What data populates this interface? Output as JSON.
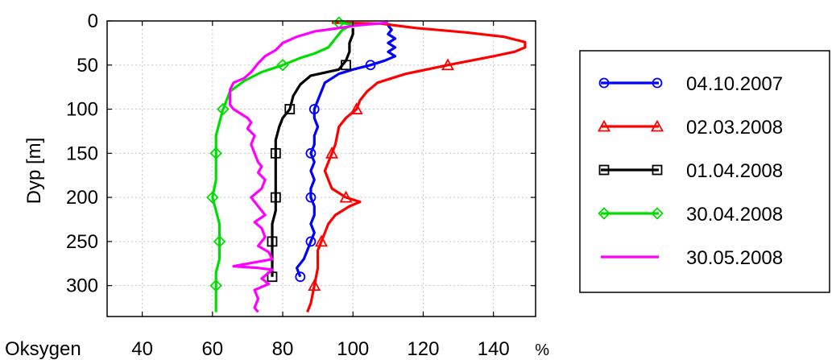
{
  "chart_data": {
    "type": "line",
    "title": "",
    "xlabel": "Oksygen",
    "xunit": "%",
    "ylabel": "Dyp [m]",
    "xlim": [
      30,
      152
    ],
    "ylim": [
      0,
      335
    ],
    "y_inverted": true,
    "xticks": [
      40,
      60,
      80,
      100,
      120,
      140
    ],
    "yticks": [
      0,
      50,
      100,
      150,
      200,
      250,
      300
    ],
    "grid": true,
    "legend_position": "right",
    "series": [
      {
        "name": "04.10.2007",
        "color": "#0000ff",
        "marker": "circle",
        "points": [
          [
            110,
            5
          ],
          [
            111,
            10
          ],
          [
            110,
            15
          ],
          [
            112,
            20
          ],
          [
            110,
            25
          ],
          [
            112,
            30
          ],
          [
            110,
            35
          ],
          [
            112,
            40
          ],
          [
            109,
            45
          ],
          [
            105,
            50
          ],
          [
            100,
            55
          ],
          [
            96,
            60
          ],
          [
            94,
            65
          ],
          [
            92,
            70
          ],
          [
            91,
            80
          ],
          [
            90,
            90
          ],
          [
            89,
            100
          ],
          [
            89,
            110
          ],
          [
            90,
            120
          ],
          [
            89,
            130
          ],
          [
            89,
            140
          ],
          [
            88,
            150
          ],
          [
            89,
            160
          ],
          [
            88,
            170
          ],
          [
            89,
            180
          ],
          [
            88,
            190
          ],
          [
            88,
            200
          ],
          [
            89,
            210
          ],
          [
            89,
            220
          ],
          [
            88,
            230
          ],
          [
            89,
            240
          ],
          [
            88,
            250
          ],
          [
            87,
            260
          ],
          [
            86,
            270
          ],
          [
            84,
            280
          ],
          [
            85,
            290
          ]
        ],
        "marker_points": [
          [
            105,
            50
          ],
          [
            89,
            100
          ],
          [
            88,
            150
          ],
          [
            88,
            200
          ],
          [
            88,
            250
          ],
          [
            85,
            290
          ]
        ]
      },
      {
        "name": "02.03.2008",
        "color": "#ff0000",
        "marker": "triangle",
        "points": [
          [
            94,
            2
          ],
          [
            108,
            3
          ],
          [
            118,
            8
          ],
          [
            132,
            13
          ],
          [
            143,
            18
          ],
          [
            149,
            24
          ],
          [
            149,
            30
          ],
          [
            146,
            35
          ],
          [
            140,
            40
          ],
          [
            127,
            50
          ],
          [
            115,
            60
          ],
          [
            107,
            70
          ],
          [
            104,
            80
          ],
          [
            102,
            90
          ],
          [
            101,
            100
          ],
          [
            98,
            110
          ],
          [
            96,
            120
          ],
          [
            95,
            140
          ],
          [
            94,
            150
          ],
          [
            93,
            160
          ],
          [
            92,
            170
          ],
          [
            93,
            180
          ],
          [
            94,
            190
          ],
          [
            98,
            200
          ],
          [
            102,
            205
          ],
          [
            99,
            210
          ],
          [
            95,
            220
          ],
          [
            93,
            230
          ],
          [
            92,
            240
          ],
          [
            91,
            250
          ],
          [
            90,
            260
          ],
          [
            90,
            280
          ],
          [
            89,
            300
          ],
          [
            88,
            320
          ],
          [
            87,
            330
          ]
        ],
        "marker_points": [
          [
            127,
            50
          ],
          [
            101,
            100
          ],
          [
            94,
            150
          ],
          [
            98,
            200
          ],
          [
            91,
            250
          ],
          [
            89,
            300
          ]
        ]
      },
      {
        "name": "01.04.2008",
        "color": "#000000",
        "marker": "square",
        "points": [
          [
            100,
            8
          ],
          [
            100,
            15
          ],
          [
            99,
            25
          ],
          [
            99,
            35
          ],
          [
            98,
            45
          ],
          [
            96,
            55
          ],
          [
            88,
            62
          ],
          [
            85,
            72
          ],
          [
            83,
            85
          ],
          [
            82,
            100
          ],
          [
            80,
            110
          ],
          [
            79,
            120
          ],
          [
            78,
            135
          ],
          [
            78,
            150
          ],
          [
            78,
            160
          ],
          [
            78,
            175
          ],
          [
            78,
            190
          ],
          [
            78,
            200
          ],
          [
            78,
            215
          ],
          [
            77,
            230
          ],
          [
            77,
            250
          ],
          [
            77,
            265
          ],
          [
            77,
            280
          ],
          [
            77,
            290
          ]
        ],
        "marker_points": [
          [
            98,
            50
          ],
          [
            82,
            100
          ],
          [
            78,
            150
          ],
          [
            78,
            200
          ],
          [
            77,
            250
          ],
          [
            77,
            290
          ]
        ]
      },
      {
        "name": "30.04.2008",
        "color": "#00dd00",
        "marker": "diamond",
        "points": [
          [
            96,
            2
          ],
          [
            100,
            4
          ],
          [
            97,
            10
          ],
          [
            95,
            20
          ],
          [
            93,
            30
          ],
          [
            89,
            37
          ],
          [
            85,
            42
          ],
          [
            80,
            50
          ],
          [
            74,
            58
          ],
          [
            69,
            68
          ],
          [
            65,
            80
          ],
          [
            64,
            90
          ],
          [
            63,
            100
          ],
          [
            62,
            115
          ],
          [
            61,
            130
          ],
          [
            61,
            150
          ],
          [
            61,
            165
          ],
          [
            61,
            180
          ],
          [
            60,
            200
          ],
          [
            61,
            215
          ],
          [
            62,
            230
          ],
          [
            62,
            250
          ],
          [
            62,
            270
          ],
          [
            61,
            285
          ],
          [
            61,
            300
          ],
          [
            61,
            320
          ],
          [
            61,
            330
          ]
        ],
        "marker_points": [
          [
            96,
            2
          ],
          [
            80,
            50
          ],
          [
            63,
            100
          ],
          [
            61,
            150
          ],
          [
            60,
            200
          ],
          [
            62,
            250
          ],
          [
            61,
            300
          ]
        ]
      },
      {
        "name": "30.05.2008",
        "color": "#ff00ff",
        "marker": "none",
        "points": [
          [
            110,
            2
          ],
          [
            101,
            5
          ],
          [
            96,
            8
          ],
          [
            89,
            12
          ],
          [
            84,
            18
          ],
          [
            80,
            25
          ],
          [
            78,
            33
          ],
          [
            75,
            40
          ],
          [
            73,
            48
          ],
          [
            71,
            58
          ],
          [
            69,
            65
          ],
          [
            66,
            70
          ],
          [
            65,
            78
          ],
          [
            65,
            85
          ],
          [
            65,
            95
          ],
          [
            66,
            100
          ],
          [
            68,
            105
          ],
          [
            70,
            110
          ],
          [
            71,
            115
          ],
          [
            70,
            122
          ],
          [
            72,
            130
          ],
          [
            71,
            140
          ],
          [
            72,
            150
          ],
          [
            73,
            160
          ],
          [
            74,
            165
          ],
          [
            73,
            172
          ],
          [
            75,
            180
          ],
          [
            74,
            190
          ],
          [
            71,
            200
          ],
          [
            73,
            210
          ],
          [
            75,
            220
          ],
          [
            72,
            228
          ],
          [
            74,
            235
          ],
          [
            75,
            245
          ],
          [
            73,
            255
          ],
          [
            76,
            262
          ],
          [
            77,
            270
          ],
          [
            66,
            278
          ],
          [
            73,
            280
          ],
          [
            77,
            282
          ],
          [
            74,
            292
          ],
          [
            76,
            298
          ],
          [
            72,
            305
          ],
          [
            73,
            315
          ],
          [
            72,
            325
          ],
          [
            73,
            330
          ]
        ],
        "marker_points": []
      }
    ]
  }
}
